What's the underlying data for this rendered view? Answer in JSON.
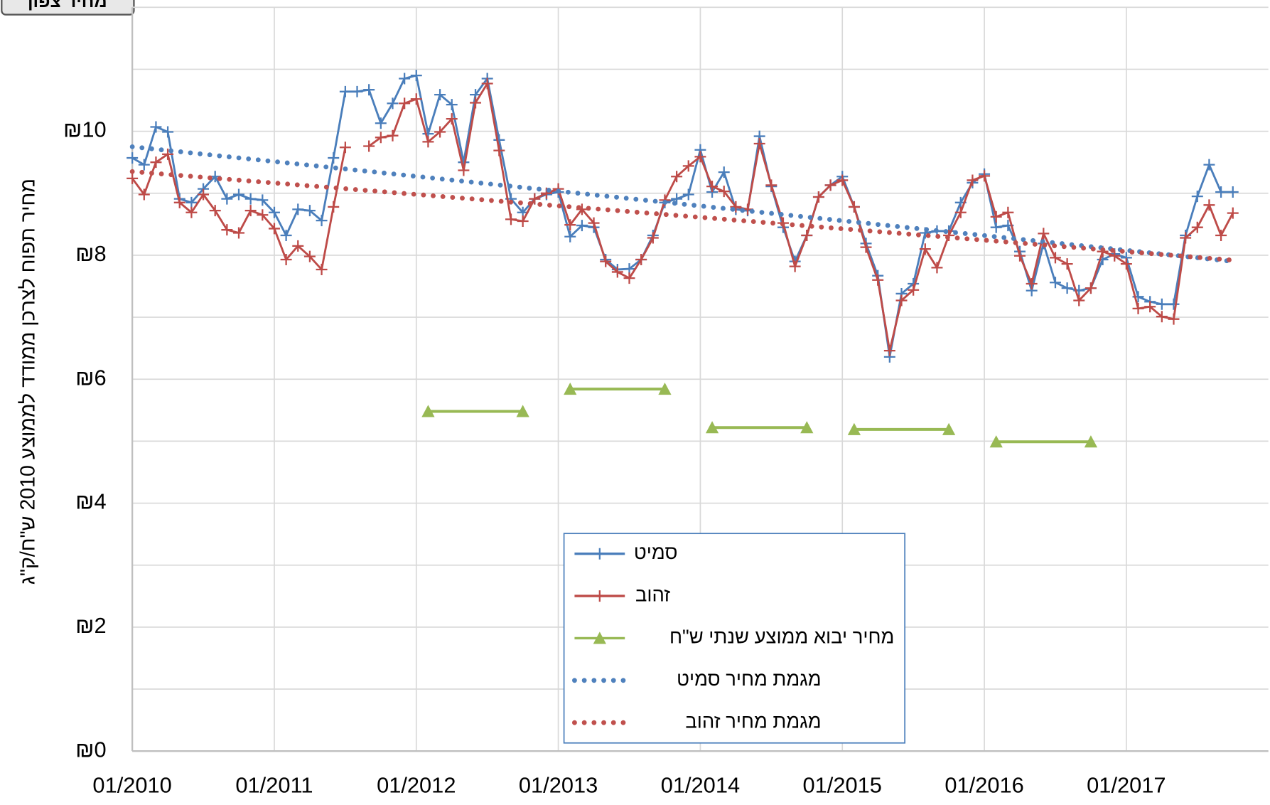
{
  "button": {
    "label": "מחיר צפון"
  },
  "chart_data": {
    "type": "line",
    "y_label": "מחיר תפוח לצרכן ממודד לממוצע 2010 ש\"ח/ק\"ג",
    "x": [
      "01/2010",
      "02/2010",
      "03/2010",
      "04/2010",
      "05/2010",
      "06/2010",
      "07/2010",
      "08/2010",
      "09/2010",
      "10/2010",
      "11/2010",
      "12/2010",
      "01/2011",
      "02/2011",
      "03/2011",
      "04/2011",
      "05/2011",
      "06/2011",
      "07/2011",
      "08/2011",
      "09/2011",
      "10/2011",
      "11/2011",
      "12/2011",
      "01/2012",
      "02/2012",
      "03/2012",
      "04/2012",
      "05/2012",
      "06/2012",
      "07/2012",
      "08/2012",
      "09/2012",
      "10/2012",
      "11/2012",
      "12/2012",
      "01/2013",
      "02/2013",
      "03/2013",
      "04/2013",
      "05/2013",
      "06/2013",
      "07/2013",
      "08/2013",
      "09/2013",
      "10/2013",
      "11/2013",
      "12/2013",
      "01/2014",
      "02/2014",
      "03/2014",
      "04/2014",
      "05/2014",
      "06/2014",
      "07/2014",
      "08/2014",
      "09/2014",
      "10/2014",
      "11/2014",
      "12/2014",
      "01/2015",
      "02/2015",
      "03/2015",
      "04/2015",
      "05/2015",
      "06/2015",
      "07/2015",
      "08/2015",
      "09/2015",
      "10/2015",
      "11/2015",
      "12/2015",
      "01/2016",
      "02/2016",
      "03/2016",
      "04/2016",
      "05/2016",
      "06/2016",
      "07/2016",
      "08/2016",
      "09/2016",
      "10/2016",
      "11/2016",
      "12/2016",
      "01/2017",
      "02/2017",
      "03/2017",
      "04/2017",
      "05/2017",
      "06/2017",
      "07/2017",
      "08/2017",
      "09/2017",
      "10/2017"
    ],
    "xlim": [
      "01/2010",
      "01/2018"
    ],
    "xticks": [
      "01/2010",
      "01/2011",
      "01/2012",
      "01/2013",
      "01/2014",
      "01/2015",
      "01/2016",
      "01/2017"
    ],
    "ylim": [
      0,
      12
    ],
    "yticks": [
      {
        "value": 0,
        "label": "₪0"
      },
      {
        "value": 2,
        "label": "₪2"
      },
      {
        "value": 4,
        "label": "₪4"
      },
      {
        "value": 6,
        "label": "₪6"
      },
      {
        "value": 8,
        "label": "₪8"
      },
      {
        "value": 10,
        "label": "₪10"
      }
    ],
    "grid": true,
    "series": [
      {
        "name": "סמיט",
        "color": "#4a7ebb",
        "style": "line-plus",
        "values": [
          9.57,
          9.46,
          10.07,
          9.99,
          8.91,
          8.85,
          9.07,
          9.27,
          8.91,
          8.98,
          8.91,
          8.89,
          8.69,
          8.32,
          8.74,
          8.72,
          8.56,
          9.57,
          10.64,
          10.64,
          10.67,
          10.13,
          10.45,
          10.85,
          10.9,
          9.96,
          10.59,
          10.43,
          9.5,
          10.59,
          10.85,
          9.86,
          8.91,
          8.69,
          8.91,
          8.98,
          9.02,
          8.3,
          8.48,
          8.45,
          7.93,
          7.77,
          7.78,
          7.93,
          8.32,
          8.85,
          8.91,
          8.98,
          9.7,
          9.02,
          9.34,
          8.74,
          8.72,
          9.92,
          9.11,
          8.45,
          7.9,
          8.32,
          8.94,
          9.13,
          9.27,
          8.78,
          8.19,
          7.67,
          6.36,
          7.38,
          7.54,
          8.36,
          8.39,
          8.39,
          8.85,
          9.17,
          9.31,
          8.45,
          8.48,
          8.06,
          7.43,
          8.19,
          7.56,
          7.47,
          7.43,
          7.47,
          7.93,
          8.02,
          7.96,
          7.33,
          7.25,
          7.21,
          7.21,
          8.32,
          8.95,
          9.46,
          9.02,
          9.02
        ]
      },
      {
        "name": "זהוב",
        "color": "#be4b48",
        "style": "line-plus",
        "values": [
          9.24,
          8.98,
          9.5,
          9.63,
          8.85,
          8.69,
          8.98,
          8.72,
          8.41,
          8.36,
          8.72,
          8.65,
          8.43,
          7.93,
          8.15,
          7.98,
          7.77,
          8.78,
          9.74,
          null,
          9.76,
          9.9,
          9.93,
          10.45,
          10.52,
          9.83,
          9.99,
          10.2,
          9.37,
          10.46,
          10.77,
          9.69,
          8.58,
          8.55,
          8.91,
          9.0,
          9.07,
          8.49,
          8.74,
          8.52,
          7.9,
          7.73,
          7.63,
          7.93,
          8.28,
          8.89,
          9.27,
          9.44,
          9.59,
          9.11,
          9.03,
          8.78,
          8.74,
          9.8,
          9.13,
          8.52,
          7.82,
          8.32,
          8.94,
          9.13,
          9.21,
          8.78,
          8.13,
          7.6,
          6.46,
          7.27,
          7.44,
          8.1,
          7.8,
          8.32,
          8.69,
          9.21,
          9.28,
          8.62,
          8.69,
          7.99,
          7.54,
          8.35,
          7.96,
          7.86,
          7.27,
          7.47,
          8.06,
          7.99,
          7.86,
          7.14,
          7.17,
          7.01,
          6.97,
          8.28,
          8.45,
          8.81,
          8.32,
          8.68
        ]
      },
      {
        "name": "מחיר יבוא ממוצע שנתי ש\"ח",
        "color": "#98b954",
        "style": "line-triangle",
        "x": [
          "02/2012",
          "10/2012",
          "12/2012",
          "02/2013",
          "10/2013",
          "12/2013",
          "02/2014",
          "10/2014",
          "12/2014",
          "02/2015",
          "10/2015",
          "12/2015",
          "02/2016",
          "10/2016"
        ],
        "values": [
          5.48,
          5.48,
          null,
          5.84,
          5.84,
          null,
          5.22,
          5.22,
          null,
          5.19,
          5.19,
          null,
          4.99,
          4.99
        ]
      },
      {
        "name": "מגמת מחיר סמיט",
        "color": "#4f81bd",
        "style": "dotted",
        "x": [
          "01/2010",
          "10/2017"
        ],
        "values": [
          9.75,
          7.9
        ]
      },
      {
        "name": "מגמת מחיר זהוב",
        "color": "#c0504d",
        "style": "dotted",
        "x": [
          "01/2010",
          "10/2017"
        ],
        "values": [
          9.35,
          7.92
        ]
      }
    ]
  }
}
